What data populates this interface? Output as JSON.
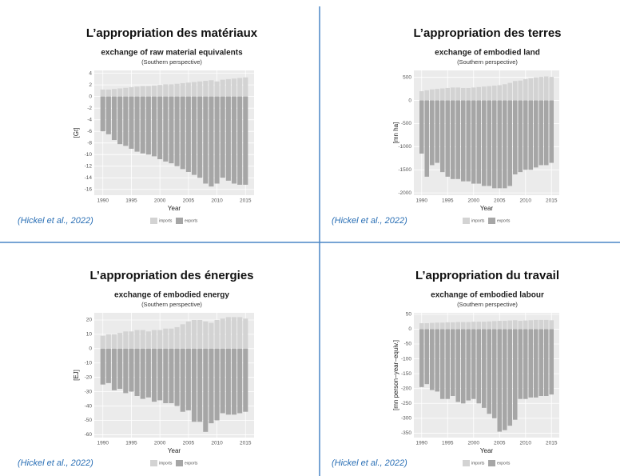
{
  "chart_data": [
    {
      "type": "bar",
      "heading": "L’appropriation des matériaux",
      "title": "exchange of raw material equivalents",
      "subtitle": "(Southern perspective)",
      "ylabel": "[Gt]",
      "xlabel": "Year",
      "citation": "(Hickel et al., 2022)",
      "x": [
        1990,
        1991,
        1992,
        1993,
        1994,
        1995,
        1996,
        1997,
        1998,
        1999,
        2000,
        2001,
        2002,
        2003,
        2004,
        2005,
        2006,
        2007,
        2008,
        2009,
        2010,
        2011,
        2012,
        2013,
        2014,
        2015
      ],
      "xlim": [
        1988.5,
        2016.5
      ],
      "xticks": [
        1990,
        1995,
        2000,
        2005,
        2010,
        2015
      ],
      "ylim": [
        -17,
        4.5
      ],
      "yticks": [
        4,
        2,
        0,
        -2,
        -4,
        -6,
        -8,
        -10,
        -12,
        -14,
        -16
      ],
      "grid": true,
      "series": [
        {
          "name": "imports",
          "color": "#d3d3d3",
          "values": [
            1.2,
            1.2,
            1.3,
            1.4,
            1.5,
            1.6,
            1.7,
            1.8,
            1.8,
            1.9,
            2,
            2.1,
            2.1,
            2.2,
            2.3,
            2.4,
            2.5,
            2.6,
            2.7,
            2.8,
            2.6,
            2.9,
            3,
            3.1,
            3.2,
            3.3
          ]
        },
        {
          "name": "exports",
          "color": "#a6a6a6",
          "values": [
            -6,
            -6.5,
            -7.5,
            -8.2,
            -8.5,
            -9,
            -9.5,
            -9.8,
            -10,
            -10.3,
            -10.8,
            -11.2,
            -11.5,
            -12,
            -12.5,
            -13,
            -13.5,
            -14,
            -15,
            -15.5,
            -15,
            -14,
            -14.5,
            -15,
            -15.2,
            -15.2
          ]
        }
      ]
    },
    {
      "type": "bar",
      "heading": "L’appropriation des terres",
      "title": "exchange of embodied land",
      "subtitle": "(Southern perspective)",
      "ylabel": "[mn ha]",
      "xlabel": "Year",
      "citation": "(Hickel et al., 2022)",
      "x": [
        1990,
        1991,
        1992,
        1993,
        1994,
        1995,
        1996,
        1997,
        1998,
        1999,
        2000,
        2001,
        2002,
        2003,
        2004,
        2005,
        2006,
        2007,
        2008,
        2009,
        2010,
        2011,
        2012,
        2013,
        2014,
        2015
      ],
      "xlim": [
        1988.5,
        2016.5
      ],
      "xticks": [
        1990,
        1995,
        2000,
        2005,
        2010,
        2015
      ],
      "ylim": [
        -2050,
        650
      ],
      "yticks": [
        500,
        0,
        -500,
        -1000,
        -1500,
        -2000
      ],
      "grid": true,
      "series": [
        {
          "name": "imports",
          "color": "#d3d3d3",
          "values": [
            200,
            220,
            240,
            250,
            260,
            270,
            280,
            280,
            270,
            270,
            280,
            290,
            300,
            310,
            320,
            330,
            350,
            380,
            420,
            430,
            460,
            480,
            500,
            510,
            520,
            510
          ]
        },
        {
          "name": "exports",
          "color": "#a6a6a6",
          "values": [
            -1150,
            -1650,
            -1400,
            -1350,
            -1550,
            -1650,
            -1700,
            -1700,
            -1750,
            -1750,
            -1800,
            -1800,
            -1850,
            -1850,
            -1900,
            -1900,
            -1900,
            -1850,
            -1600,
            -1550,
            -1500,
            -1500,
            -1450,
            -1400,
            -1400,
            -1350
          ]
        }
      ]
    },
    {
      "type": "bar",
      "heading": "L’appropriation des énergies",
      "title": "exchange of embodied energy",
      "subtitle": "(Southern perspective)",
      "ylabel": "[EJ]",
      "xlabel": "Year",
      "citation": "(Hickel et al., 2022)",
      "x": [
        1990,
        1991,
        1992,
        1993,
        1994,
        1995,
        1996,
        1997,
        1998,
        1999,
        2000,
        2001,
        2002,
        2003,
        2004,
        2005,
        2006,
        2007,
        2008,
        2009,
        2010,
        2011,
        2012,
        2013,
        2014,
        2015
      ],
      "xlim": [
        1988.5,
        2016.5
      ],
      "xticks": [
        1990,
        1995,
        2000,
        2005,
        2010,
        2015
      ],
      "ylim": [
        -62,
        25
      ],
      "yticks": [
        20,
        10,
        0,
        -10,
        -20,
        -30,
        -40,
        -50,
        -60
      ],
      "grid": true,
      "series": [
        {
          "name": "imports",
          "color": "#d3d3d3",
          "values": [
            9,
            10,
            10,
            11,
            12,
            12,
            13,
            13,
            12,
            13,
            13,
            14,
            14,
            15,
            17,
            19,
            20,
            20,
            19,
            18,
            20,
            21,
            22,
            22,
            22,
            21
          ]
        },
        {
          "name": "exports",
          "color": "#a6a6a6",
          "values": [
            -25,
            -24,
            -29,
            -28,
            -31,
            -30,
            -33,
            -35,
            -34,
            -37,
            -36,
            -38,
            -38,
            -40,
            -44,
            -43,
            -51,
            -51,
            -58,
            -52,
            -50,
            -45,
            -46,
            -46,
            -45,
            -44
          ]
        }
      ]
    },
    {
      "type": "bar",
      "heading": "L’appropriation du travail",
      "title": "exchange of embodied labour",
      "subtitle": "(Southern perspective)",
      "ylabel": "[mn person−year−equiv.]",
      "xlabel": "Year",
      "citation": "(Hickel et al., 2022)",
      "x": [
        1990,
        1991,
        1992,
        1993,
        1994,
        1995,
        1996,
        1997,
        1998,
        1999,
        2000,
        2001,
        2002,
        2003,
        2004,
        2005,
        2006,
        2007,
        2008,
        2009,
        2010,
        2011,
        2012,
        2013,
        2014,
        2015
      ],
      "xlim": [
        1988.5,
        2016.5
      ],
      "xticks": [
        1990,
        1995,
        2000,
        2005,
        2010,
        2015
      ],
      "ylim": [
        -365,
        55
      ],
      "yticks": [
        50,
        0,
        -50,
        -100,
        -150,
        -200,
        -250,
        -300,
        -350
      ],
      "grid": true,
      "series": [
        {
          "name": "imports",
          "color": "#d3d3d3",
          "values": [
            20,
            20,
            21,
            22,
            22,
            23,
            23,
            24,
            24,
            24,
            25,
            25,
            25,
            26,
            27,
            28,
            28,
            29,
            30,
            28,
            29,
            30,
            31,
            31,
            31,
            30
          ]
        },
        {
          "name": "exports",
          "color": "#a6a6a6",
          "values": [
            -195,
            -185,
            -205,
            -210,
            -235,
            -235,
            -225,
            -245,
            -250,
            -240,
            -235,
            -250,
            -265,
            -285,
            -300,
            -345,
            -340,
            -325,
            -305,
            -235,
            -235,
            -230,
            -230,
            -225,
            -225,
            -220
          ]
        }
      ]
    }
  ]
}
